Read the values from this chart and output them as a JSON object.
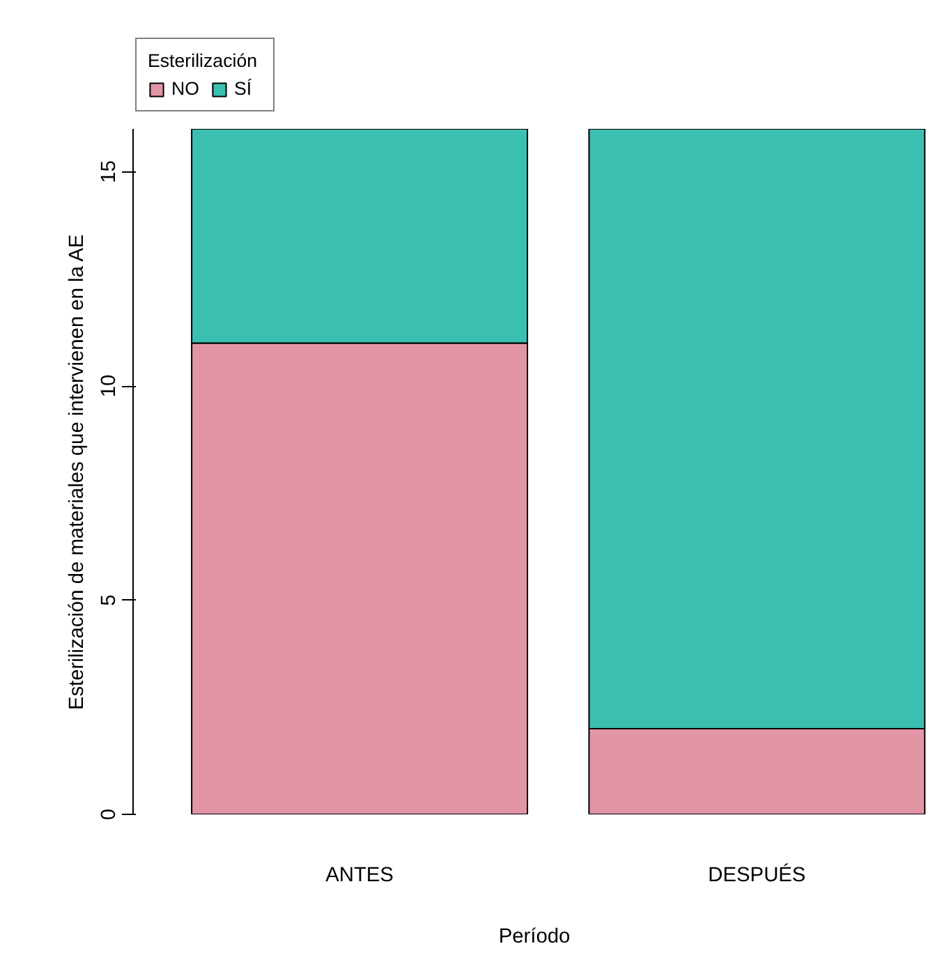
{
  "chart_data": {
    "type": "bar",
    "stacked": true,
    "xlabel": "Período",
    "ylabel": "Esterilización de materiales que intervienen en la AE",
    "legend_title": "Esterilización",
    "legend": "top left",
    "grid": false,
    "categories": [
      "ANTES",
      "DESPUÉS"
    ],
    "series": [
      {
        "name": "NO",
        "color": "#e295a5",
        "values": [
          11,
          2
        ]
      },
      {
        "name": "SÍ",
        "color": "#3bbfb0",
        "values": [
          5,
          14
        ]
      }
    ],
    "ylim": [
      0,
      16
    ],
    "yticks": [
      0,
      5,
      10,
      15
    ]
  }
}
